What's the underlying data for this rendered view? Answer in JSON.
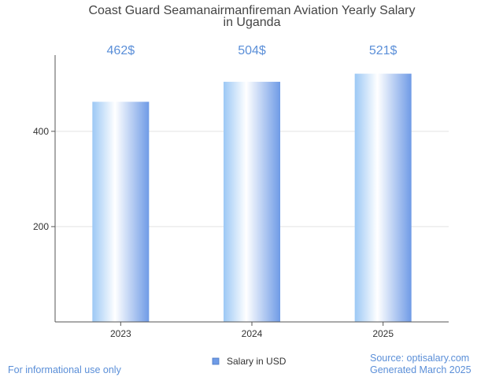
{
  "chart_data": {
    "type": "bar",
    "title_lines": [
      "Coast Guard Seamanairmanfireman Aviation Yearly Salary",
      "in Uganda"
    ],
    "categories": [
      "2023",
      "2024",
      "2025"
    ],
    "series": [
      {
        "name": "Salary in USD",
        "values": [
          462,
          504,
          521
        ]
      }
    ],
    "data_labels": [
      "462$",
      "504$",
      "521$"
    ],
    "y_ticks": [
      200,
      400
    ],
    "ylim": [
      0,
      560
    ],
    "grid": true,
    "legend_position": "bottom",
    "colors": {
      "bar_edge": "#6f9be6",
      "bar_mid": "#ffffff",
      "label": "#5b8fd8",
      "legend_swatch": "#6f9be6"
    }
  },
  "footer": {
    "left": "For informational use only",
    "source": "Source: optisalary.com",
    "generated": "Generated March 2025"
  }
}
